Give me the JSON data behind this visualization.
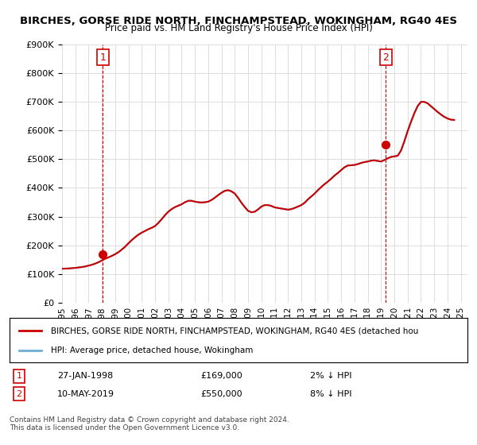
{
  "title": "BIRCHES, GORSE RIDE NORTH, FINCHAMPSTEAD, WOKINGHAM, RG40 4ES",
  "subtitle": "Price paid vs. HM Land Registry's House Price Index (HPI)",
  "ylabel_ticks": [
    "£0",
    "£100K",
    "£200K",
    "£300K",
    "£400K",
    "£500K",
    "£600K",
    "£700K",
    "£800K",
    "£900K"
  ],
  "ytick_values": [
    0,
    100000,
    200000,
    300000,
    400000,
    500000,
    600000,
    700000,
    800000,
    900000
  ],
  "ylim": [
    0,
    900000
  ],
  "xlim_start": 1995.0,
  "xlim_end": 2025.5,
  "x_ticks": [
    1995,
    1996,
    1997,
    1998,
    1999,
    2000,
    2001,
    2002,
    2003,
    2004,
    2005,
    2006,
    2007,
    2008,
    2009,
    2010,
    2011,
    2012,
    2013,
    2014,
    2015,
    2016,
    2017,
    2018,
    2019,
    2020,
    2021,
    2022,
    2023,
    2024,
    2025
  ],
  "hpi_color": "#6baed6",
  "price_color": "#cc0000",
  "vline_color": "#cc0000",
  "annotation_box_color": "#cc0000",
  "background_color": "#ffffff",
  "grid_color": "#dddddd",
  "sale1_x": 1998.07,
  "sale1_y": 169000,
  "sale1_label": "1",
  "sale1_vline_x": 1998.07,
  "sale2_x": 2019.36,
  "sale2_y": 550000,
  "sale2_label": "2",
  "sale2_vline_x": 2019.36,
  "legend_line1": "BIRCHES, GORSE RIDE NORTH, FINCHAMPSTEAD, WOKINGHAM, RG40 4ES (detached hou",
  "legend_line2": "HPI: Average price, detached house, Wokingham",
  "annot1_date": "27-JAN-1998",
  "annot1_price": "£169,000",
  "annot1_hpi": "2% ↓ HPI",
  "annot2_date": "10-MAY-2019",
  "annot2_price": "£550,000",
  "annot2_hpi": "8% ↓ HPI",
  "footnote": "Contains HM Land Registry data © Crown copyright and database right 2024.\nThis data is licensed under the Open Government Licence v3.0.",
  "hpi_data_x": [
    1995.0,
    1995.25,
    1995.5,
    1995.75,
    1996.0,
    1996.25,
    1996.5,
    1996.75,
    1997.0,
    1997.25,
    1997.5,
    1997.75,
    1998.0,
    1998.25,
    1998.5,
    1998.75,
    1999.0,
    1999.25,
    1999.5,
    1999.75,
    2000.0,
    2000.25,
    2000.5,
    2000.75,
    2001.0,
    2001.25,
    2001.5,
    2001.75,
    2002.0,
    2002.25,
    2002.5,
    2002.75,
    2003.0,
    2003.25,
    2003.5,
    2003.75,
    2004.0,
    2004.25,
    2004.5,
    2004.75,
    2005.0,
    2005.25,
    2005.5,
    2005.75,
    2006.0,
    2006.25,
    2006.5,
    2006.75,
    2007.0,
    2007.25,
    2007.5,
    2007.75,
    2008.0,
    2008.25,
    2008.5,
    2008.75,
    2009.0,
    2009.25,
    2009.5,
    2009.75,
    2010.0,
    2010.25,
    2010.5,
    2010.75,
    2011.0,
    2011.25,
    2011.5,
    2011.75,
    2012.0,
    2012.25,
    2012.5,
    2012.75,
    2013.0,
    2013.25,
    2013.5,
    2013.75,
    2014.0,
    2014.25,
    2014.5,
    2014.75,
    2015.0,
    2015.25,
    2015.5,
    2015.75,
    2016.0,
    2016.25,
    2016.5,
    2016.75,
    2017.0,
    2017.25,
    2017.5,
    2017.75,
    2018.0,
    2018.25,
    2018.5,
    2018.75,
    2019.0,
    2019.25,
    2019.5,
    2019.75,
    2020.0,
    2020.25,
    2020.5,
    2020.75,
    2021.0,
    2021.25,
    2021.5,
    2021.75,
    2022.0,
    2022.25,
    2022.5,
    2022.75,
    2023.0,
    2023.25,
    2023.5,
    2023.75,
    2024.0,
    2024.25,
    2024.5
  ],
  "hpi_data_y": [
    118000,
    118500,
    119000,
    120000,
    121000,
    122500,
    124000,
    126000,
    129000,
    132000,
    136000,
    141000,
    147000,
    153000,
    158000,
    163000,
    169000,
    176000,
    185000,
    195000,
    207000,
    218000,
    228000,
    237000,
    244000,
    250000,
    256000,
    261000,
    267000,
    278000,
    291000,
    305000,
    317000,
    326000,
    333000,
    338000,
    343000,
    350000,
    355000,
    355000,
    352000,
    350000,
    349000,
    350000,
    352000,
    358000,
    366000,
    375000,
    383000,
    390000,
    392000,
    388000,
    380000,
    365000,
    348000,
    333000,
    320000,
    315000,
    317000,
    325000,
    335000,
    340000,
    340000,
    337000,
    332000,
    330000,
    328000,
    326000,
    324000,
    326000,
    330000,
    335000,
    340000,
    348000,
    360000,
    370000,
    380000,
    392000,
    403000,
    413000,
    422000,
    432000,
    443000,
    452000,
    462000,
    472000,
    478000,
    479000,
    480000,
    483000,
    487000,
    490000,
    492000,
    495000,
    496000,
    494000,
    492000,
    497000,
    503000,
    508000,
    510000,
    512000,
    530000,
    562000,
    598000,
    630000,
    660000,
    685000,
    700000,
    700000,
    695000,
    685000,
    675000,
    665000,
    656000,
    648000,
    642000,
    638000,
    637000
  ],
  "price_data_x": [
    1995.0,
    1995.25,
    1995.5,
    1995.75,
    1996.0,
    1996.25,
    1996.5,
    1996.75,
    1997.0,
    1997.25,
    1997.5,
    1997.75,
    1998.0,
    1998.25,
    1998.5,
    1998.75,
    1999.0,
    1999.25,
    1999.5,
    1999.75,
    2000.0,
    2000.25,
    2000.5,
    2000.75,
    2001.0,
    2001.25,
    2001.5,
    2001.75,
    2002.0,
    2002.25,
    2002.5,
    2002.75,
    2003.0,
    2003.25,
    2003.5,
    2003.75,
    2004.0,
    2004.25,
    2004.5,
    2004.75,
    2005.0,
    2005.25,
    2005.5,
    2005.75,
    2006.0,
    2006.25,
    2006.5,
    2006.75,
    2007.0,
    2007.25,
    2007.5,
    2007.75,
    2008.0,
    2008.25,
    2008.5,
    2008.75,
    2009.0,
    2009.25,
    2009.5,
    2009.75,
    2010.0,
    2010.25,
    2010.5,
    2010.75,
    2011.0,
    2011.25,
    2011.5,
    2011.75,
    2012.0,
    2012.25,
    2012.5,
    2012.75,
    2013.0,
    2013.25,
    2013.5,
    2013.75,
    2014.0,
    2014.25,
    2014.5,
    2014.75,
    2015.0,
    2015.25,
    2015.5,
    2015.75,
    2016.0,
    2016.25,
    2016.5,
    2016.75,
    2017.0,
    2017.25,
    2017.5,
    2017.75,
    2018.0,
    2018.25,
    2018.5,
    2018.75,
    2019.0,
    2019.25,
    2019.5,
    2019.75,
    2020.0,
    2020.25,
    2020.5,
    2020.75,
    2021.0,
    2021.25,
    2021.5,
    2021.75,
    2022.0,
    2022.25,
    2022.5,
    2022.75,
    2023.0,
    2023.25,
    2023.5,
    2023.75,
    2024.0,
    2024.25,
    2024.5
  ],
  "price_data_y": [
    118000,
    118500,
    119000,
    120000,
    121000,
    122500,
    124000,
    126000,
    129000,
    132000,
    136000,
    141000,
    147000,
    153000,
    158000,
    163000,
    169000,
    176000,
    185000,
    195000,
    207000,
    218000,
    228000,
    237000,
    244000,
    250000,
    256000,
    261000,
    267000,
    278000,
    291000,
    305000,
    317000,
    326000,
    333000,
    338000,
    343000,
    350000,
    355000,
    355000,
    352000,
    350000,
    349000,
    350000,
    352000,
    358000,
    366000,
    375000,
    383000,
    390000,
    392000,
    388000,
    380000,
    365000,
    348000,
    333000,
    320000,
    315000,
    317000,
    325000,
    335000,
    340000,
    340000,
    337000,
    332000,
    330000,
    328000,
    326000,
    324000,
    326000,
    330000,
    335000,
    340000,
    348000,
    360000,
    370000,
    380000,
    392000,
    403000,
    413000,
    422000,
    432000,
    443000,
    452000,
    462000,
    472000,
    478000,
    479000,
    480000,
    483000,
    487000,
    490000,
    492000,
    495000,
    496000,
    494000,
    492000,
    497000,
    503000,
    508000,
    510000,
    512000,
    530000,
    562000,
    598000,
    630000,
    660000,
    685000,
    700000,
    700000,
    695000,
    685000,
    675000,
    665000,
    656000,
    648000,
    642000,
    638000,
    637000
  ]
}
